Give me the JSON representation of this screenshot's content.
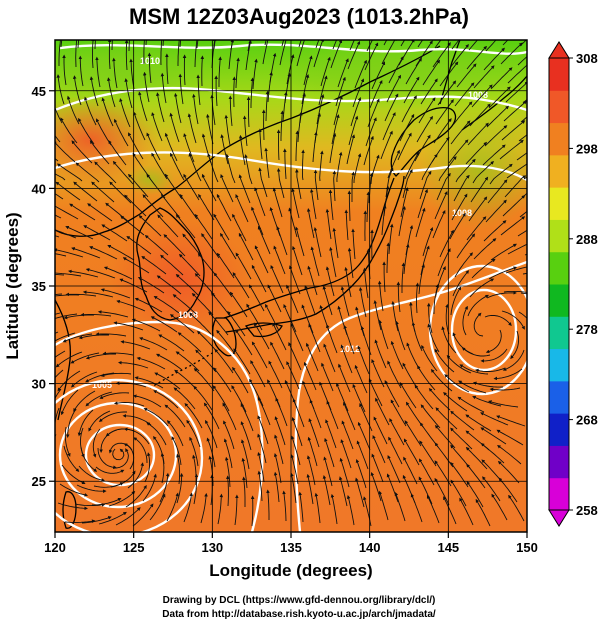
{
  "title": "MSM 12Z03Aug2023 (1013.2hPa)",
  "x_axis": {
    "label": "Longitude (degrees)",
    "ticks": [
      120,
      125,
      130,
      135,
      140,
      145,
      150
    ],
    "range": [
      120,
      150
    ]
  },
  "y_axis": {
    "label": "Latitude  (degrees)",
    "ticks": [
      25,
      30,
      35,
      40,
      45
    ],
    "range": [
      22.4,
      47.6
    ]
  },
  "colorbar": {
    "ticks": [
      258,
      268,
      278,
      288,
      298,
      308
    ],
    "range": [
      258,
      308
    ],
    "colors": [
      "#d800d8",
      "#7000c8",
      "#1020c8",
      "#1a60e8",
      "#18b8e8",
      "#10c890",
      "#10b820",
      "#58d010",
      "#b0e018",
      "#e8e820",
      "#f0b020",
      "#f08020",
      "#f05828",
      "#e83020"
    ]
  },
  "isobar_labels": [
    "1005",
    "1008",
    "1010",
    "1012",
    "1008",
    "1008"
  ],
  "footer": {
    "line1": "Drawing by DCL (https://www.gfd-dennou.org/library/dcl/)",
    "line2": "Data from http://database.rish.kyoto-u.ac.jp/arch/jmadata/"
  }
}
